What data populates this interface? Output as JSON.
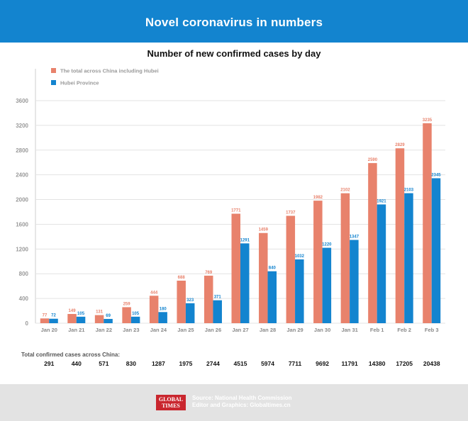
{
  "header": {
    "title": "Novel coronavirus in numbers"
  },
  "chart_data": {
    "type": "bar",
    "title": "Number of new confirmed cases by day",
    "categories": [
      "Jan 20",
      "Jan 21",
      "Jan 22",
      "Jan 23",
      "Jan 24",
      "Jan 25",
      "Jan 26",
      "Jan 27",
      "Jan 28",
      "Jan 29",
      "Jan 30",
      "Jan 31",
      "Feb 1",
      "Feb 2",
      "Feb 3"
    ],
    "series": [
      {
        "name": "The total across China including Hubei",
        "color": "#e8826c",
        "values": [
          77,
          149,
          131,
          259,
          444,
          688,
          769,
          1771,
          1459,
          1737,
          1982,
          2102,
          2590,
          2829,
          3235
        ]
      },
      {
        "name": "Hubei Province",
        "color": "#1384cf",
        "values": [
          72,
          105,
          69,
          105,
          180,
          323,
          371,
          1291,
          840,
          1032,
          1220,
          1347,
          1921,
          2103,
          2345
        ]
      }
    ],
    "ylim": [
      0,
      3600
    ],
    "yticks": [
      0,
      400,
      800,
      1200,
      1600,
      2000,
      2400,
      2800,
      3200,
      3600
    ],
    "grid": true,
    "legend": "top-left",
    "totals_label": "Total confirmed cases across China:",
    "totals": [
      291,
      440,
      571,
      830,
      1287,
      1975,
      2744,
      4515,
      5974,
      7711,
      9692,
      11791,
      14380,
      17205,
      20438
    ]
  },
  "footer": {
    "logo_line1": "GLOBAL",
    "logo_line2": "TIMES",
    "source": "Source: National Health Commission",
    "credit": "Editor and Graphics: Globaltimes.cn"
  }
}
